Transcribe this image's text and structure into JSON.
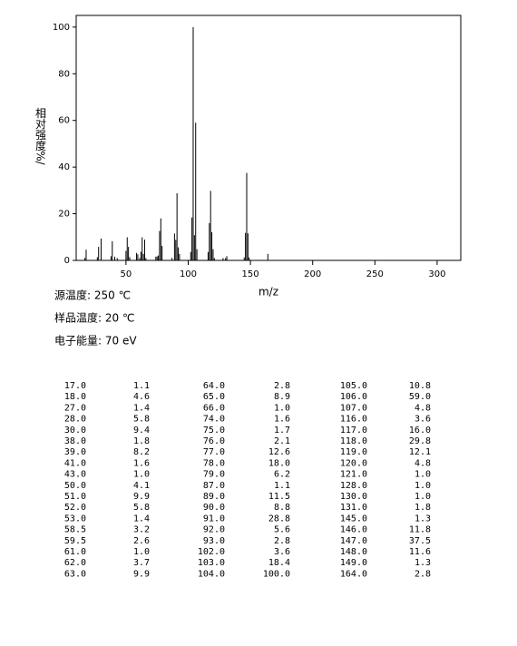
{
  "chart_data": {
    "type": "spectrum",
    "xlabel": "m/z",
    "ylabel": "相对强度%/",
    "xlim": [
      10,
      319
    ],
    "xticks": [
      50,
      100,
      150,
      200,
      250,
      300
    ],
    "ylim": [
      0,
      105
    ],
    "yticks": [
      0,
      20,
      40,
      60,
      80,
      100
    ],
    "color": "#000000",
    "x": [
      17,
      18,
      27,
      28,
      30,
      38,
      39,
      41,
      43,
      50,
      51,
      52,
      53,
      58.5,
      59.5,
      61,
      62,
      63,
      64,
      65,
      66,
      74,
      75,
      76,
      77,
      78,
      79,
      87,
      89,
      90,
      91,
      92,
      93,
      102,
      103,
      104,
      105,
      106,
      107,
      116,
      117,
      118,
      119,
      120,
      121,
      128,
      130,
      131,
      145,
      146,
      147,
      148,
      149,
      164
    ],
    "x_labels": [
      "17.0",
      "18.0",
      "27.0",
      "28.0",
      "30.0",
      "38.0",
      "39.0",
      "41.0",
      "43.0",
      "50.0",
      "51.0",
      "52.0",
      "53.0",
      "58.5",
      "59.5",
      "61.0",
      "62.0",
      "63.0",
      "64.0",
      "65.0",
      "66.0",
      "74.0",
      "75.0",
      "76.0",
      "77.0",
      "78.0",
      "79.0",
      "87.0",
      "89.0",
      "90.0",
      "91.0",
      "92.0",
      "93.0",
      "102.0",
      "103.0",
      "104.0",
      "105.0",
      "106.0",
      "107.0",
      "116.0",
      "117.0",
      "118.0",
      "119.0",
      "120.0",
      "121.0",
      "128.0",
      "130.0",
      "131.0",
      "145.0",
      "146.0",
      "147.0",
      "148.0",
      "149.0",
      "164.0"
    ],
    "values": [
      1.1,
      4.6,
      1.4,
      5.8,
      9.4,
      1.8,
      8.2,
      1.6,
      1.0,
      4.1,
      9.9,
      5.8,
      1.4,
      3.2,
      2.6,
      1.0,
      3.7,
      9.9,
      2.8,
      8.9,
      1.0,
      1.6,
      1.7,
      2.1,
      12.6,
      18.0,
      6.2,
      1.1,
      11.5,
      8.8,
      28.8,
      5.6,
      2.8,
      3.6,
      18.4,
      100.0,
      10.8,
      59.0,
      4.8,
      3.6,
      16.0,
      29.8,
      12.1,
      4.8,
      1.0,
      1.0,
      1.0,
      1.8,
      1.3,
      11.8,
      37.5,
      11.6,
      1.3,
      2.8
    ],
    "value_labels": [
      "1.1",
      "4.6",
      "1.4",
      "5.8",
      "9.4",
      "1.8",
      "8.2",
      "1.6",
      "1.0",
      "4.1",
      "9.9",
      "5.8",
      "1.4",
      "3.2",
      "2.6",
      "1.0",
      "3.7",
      "9.9",
      "2.8",
      "8.9",
      "1.0",
      "1.6",
      "1.7",
      "2.1",
      "12.6",
      "18.0",
      "6.2",
      "1.1",
      "11.5",
      "8.8",
      "28.8",
      "5.6",
      "2.8",
      "3.6",
      "18.4",
      "100.0",
      "10.8",
      "59.0",
      "4.8",
      "3.6",
      "16.0",
      "29.8",
      "12.1",
      "4.8",
      "1.0",
      "1.0",
      "1.0",
      "1.8",
      "1.3",
      "11.8",
      "37.5",
      "11.6",
      "1.3",
      "2.8"
    ],
    "conditions": [
      "源温度: 250 ℃",
      "样品温度: 20 ℃",
      "电子能量: 70 eV"
    ]
  }
}
